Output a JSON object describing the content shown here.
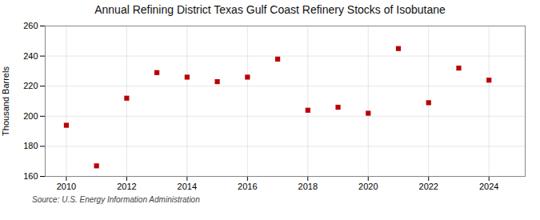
{
  "chart_data": {
    "type": "scatter",
    "title": "Annual Refining District Texas Gulf Coast Refinery Stocks of Isobutane",
    "ylabel": "Thousand Barrels",
    "source": "Source: U.S. Energy Information Administration",
    "x": [
      2010,
      2011,
      2012,
      2013,
      2014,
      2015,
      2016,
      2017,
      2018,
      2019,
      2020,
      2021,
      2022,
      2023,
      2024
    ],
    "values": [
      194,
      167,
      212,
      229,
      226,
      223,
      226,
      238,
      204,
      206,
      202,
      245,
      209,
      232,
      224
    ],
    "xlim": [
      2009.3,
      2025.2
    ],
    "xticks": [
      2010,
      2012,
      2014,
      2016,
      2018,
      2020,
      2022,
      2024
    ],
    "ylim": [
      160,
      260
    ],
    "yticks": [
      160,
      180,
      200,
      220,
      240,
      260
    ],
    "color": "#bb0000",
    "marker": "square",
    "grid": true
  }
}
